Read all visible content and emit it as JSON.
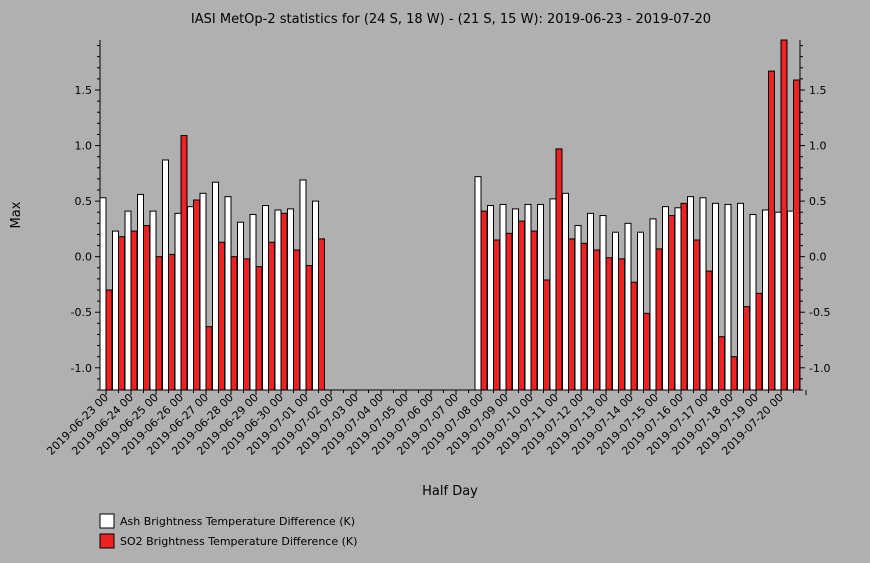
{
  "chart_data": {
    "type": "bar",
    "title": "IASI MetOp-2 statistics for (24 S, 18 W) - (21 S, 15 W): 2019-06-23 - 2019-07-20",
    "xlabel": "Half Day",
    "ylabel": "Max",
    "ylim": [
      -1.2,
      1.95
    ],
    "yticks": [
      -1.0,
      -0.5,
      0.0,
      0.5,
      1.0,
      1.5
    ],
    "ytick_labels": [
      "-1.0",
      "-0.5",
      "0.0",
      "0.5",
      "1.0",
      "1.5"
    ],
    "xtick_labels": [
      "2019-06-23 00",
      "2019-06-24 00",
      "2019-06-25 00",
      "2019-06-26 00",
      "2019-06-27 00",
      "2019-06-28 00",
      "2019-06-29 00",
      "2019-06-30 00",
      "2019-07-01 00",
      "2019-07-02 00",
      "2019-07-03 00",
      "2019-07-04 00",
      "2019-07-05 00",
      "2019-07-06 00",
      "2019-07-07 00",
      "2019-07-08 00",
      "2019-07-09 00",
      "2019-07-10 00",
      "2019-07-11 00",
      "2019-07-12 00",
      "2019-07-13 00",
      "2019-07-14 00",
      "2019-07-15 00",
      "2019-07-16 00",
      "2019-07-17 00",
      "2019-07-18 00",
      "2019-07-19 00",
      "2019-07-20 00"
    ],
    "legend_position": "bottom-left",
    "series": [
      {
        "name": "Ash Brightness Temperature Difference (K)",
        "color": "#ffffff",
        "values": [
          0.53,
          0.23,
          0.41,
          0.56,
          0.41,
          0.87,
          0.39,
          0.45,
          0.57,
          0.67,
          0.54,
          0.31,
          0.38,
          0.46,
          0.42,
          0.43,
          0.69,
          0.5,
          null,
          null,
          null,
          null,
          null,
          null,
          null,
          null,
          null,
          null,
          null,
          null,
          0.72,
          0.46,
          0.47,
          0.43,
          0.47,
          0.47,
          0.52,
          0.57,
          0.28,
          0.39,
          0.37,
          0.22,
          0.3,
          0.22,
          0.34,
          0.45,
          0.44,
          0.54,
          0.53,
          0.48,
          0.47,
          0.48,
          0.38,
          0.42,
          0.4,
          0.41
        ]
      },
      {
        "name": "SO2 Brightness Temperature Difference (K)",
        "color": "#ee2222",
        "values": [
          -0.3,
          0.18,
          0.23,
          0.28,
          0.0,
          0.02,
          1.09,
          0.51,
          -0.63,
          0.13,
          0.0,
          -0.02,
          -0.09,
          0.13,
          0.39,
          0.06,
          -0.08,
          0.16,
          null,
          null,
          null,
          null,
          null,
          null,
          null,
          null,
          null,
          null,
          null,
          null,
          0.41,
          0.15,
          0.21,
          0.32,
          0.23,
          -0.21,
          0.97,
          0.16,
          0.12,
          0.06,
          -0.01,
          -0.02,
          -0.23,
          -0.51,
          0.07,
          0.37,
          0.48,
          0.15,
          -0.13,
          -0.72,
          -0.9,
          -0.45,
          -0.33,
          1.67,
          1.95,
          1.59
        ]
      }
    ]
  }
}
